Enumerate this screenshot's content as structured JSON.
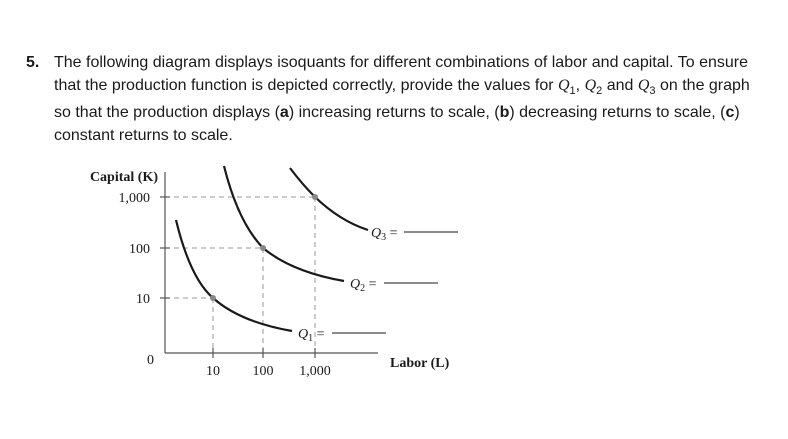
{
  "question": {
    "number": "5.",
    "part1": "The following diagram displays isoquants for different combinations of labor and capital. To ensure that the production function is depicted correctly, provide the values for ",
    "q1": "Q",
    "q1_sub": "1",
    "sep1": ", ",
    "q2": "Q",
    "q2_sub": "2",
    "sep2": " and ",
    "q3": "Q",
    "q3_sub": "3",
    "part2": " on the graph so that the production displays (",
    "a": "a",
    "part3": ") increasing returns to scale, (",
    "b": "b",
    "part4": ") decreasing returns to scale, (",
    "c": "c",
    "part5": ") constant returns to scale."
  },
  "diagram": {
    "y_axis_label": "Capital (K)",
    "x_axis_label": "Labor (L)",
    "origin": "0",
    "y_ticks": [
      "1,000",
      "100",
      "10"
    ],
    "x_ticks": [
      "10",
      "100",
      "1,000"
    ],
    "isoquants": [
      {
        "label": "Q",
        "sub": "1",
        "eq": " ="
      },
      {
        "label": "Q",
        "sub": "2",
        "eq": " ="
      },
      {
        "label": "Q",
        "sub": "3",
        "eq": " ="
      }
    ],
    "colors": {
      "curve": "#1a1a1a",
      "axis": "#555555",
      "guide": "#999999",
      "point": "#888888"
    }
  }
}
